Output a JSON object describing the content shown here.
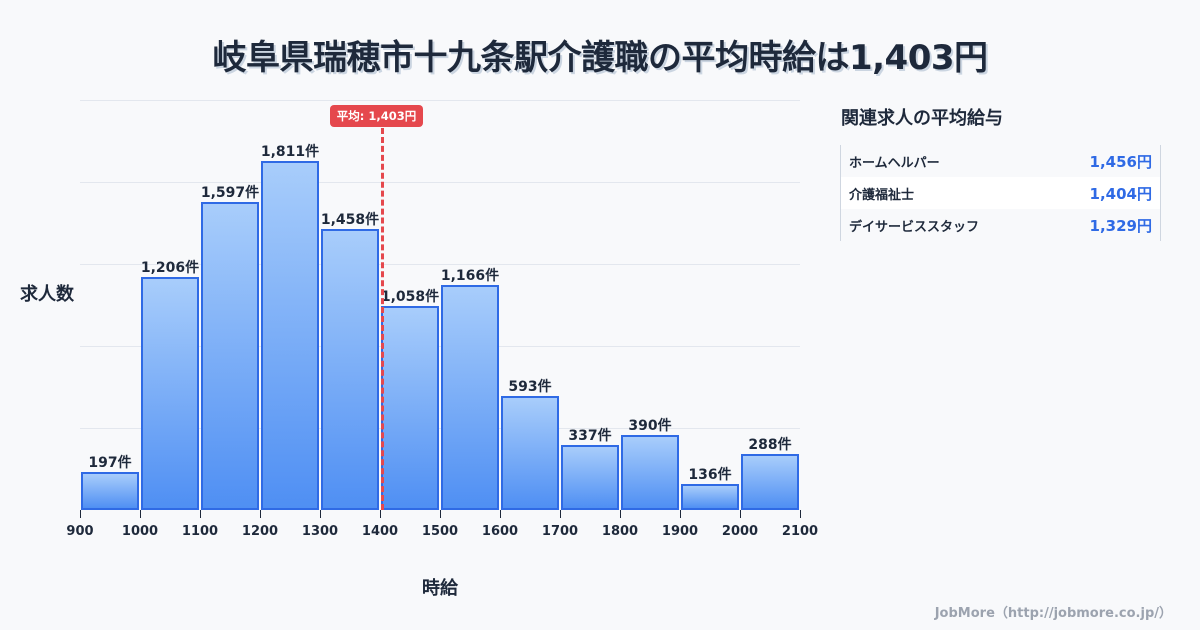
{
  "title": "岐阜県瑞穂市十九条駅介護職の平均時給は1,403円",
  "chart_data": {
    "type": "bar",
    "title": "岐阜県瑞穂市十九条駅介護職の平均時給は1,403円",
    "xlabel": "時給",
    "ylabel": "求人数",
    "bin_edges": [
      900,
      1000,
      1100,
      1200,
      1300,
      1400,
      1500,
      1600,
      1700,
      1800,
      1900,
      2000,
      2100
    ],
    "categories": [
      "900-1000",
      "1000-1100",
      "1100-1200",
      "1200-1300",
      "1300-1400",
      "1400-1500",
      "1500-1600",
      "1600-1700",
      "1700-1800",
      "1800-1900",
      "1900-2000",
      "2000-2100"
    ],
    "values": [
      197,
      1206,
      1597,
      1811,
      1458,
      1058,
      1166,
      593,
      337,
      390,
      136,
      288
    ],
    "value_labels": [
      "197件",
      "1,206件",
      "1,597件",
      "1,811件",
      "1,458件",
      "1,058件",
      "1,166件",
      "593件",
      "337件",
      "390件",
      "136件",
      "288件"
    ],
    "x_tick_labels": [
      "900",
      "1000",
      "1100",
      "1200",
      "1300",
      "1400",
      "1500",
      "1600",
      "1700",
      "1800",
      "1900",
      "2000",
      "2100"
    ],
    "xlim": [
      900,
      2100
    ],
    "ylim": [
      0,
      2125
    ],
    "grid": true,
    "average": {
      "value": 1403,
      "label": "平均: 1,403円",
      "color": "#e5484d"
    },
    "bar_color_top": "#a8cdfb",
    "bar_color_bottom": "#4f8ff3",
    "bar_border_color": "#2f6ae5"
  },
  "sidebar": {
    "title": "関連求人の平均給与",
    "items": [
      {
        "name": "ホームヘルパー",
        "value": "1,456円"
      },
      {
        "name": "介護福祉士",
        "value": "1,404円"
      },
      {
        "name": "デイサービススタッフ",
        "value": "1,329円"
      }
    ]
  },
  "footer": "JobMore（http://jobmore.co.jp/）"
}
